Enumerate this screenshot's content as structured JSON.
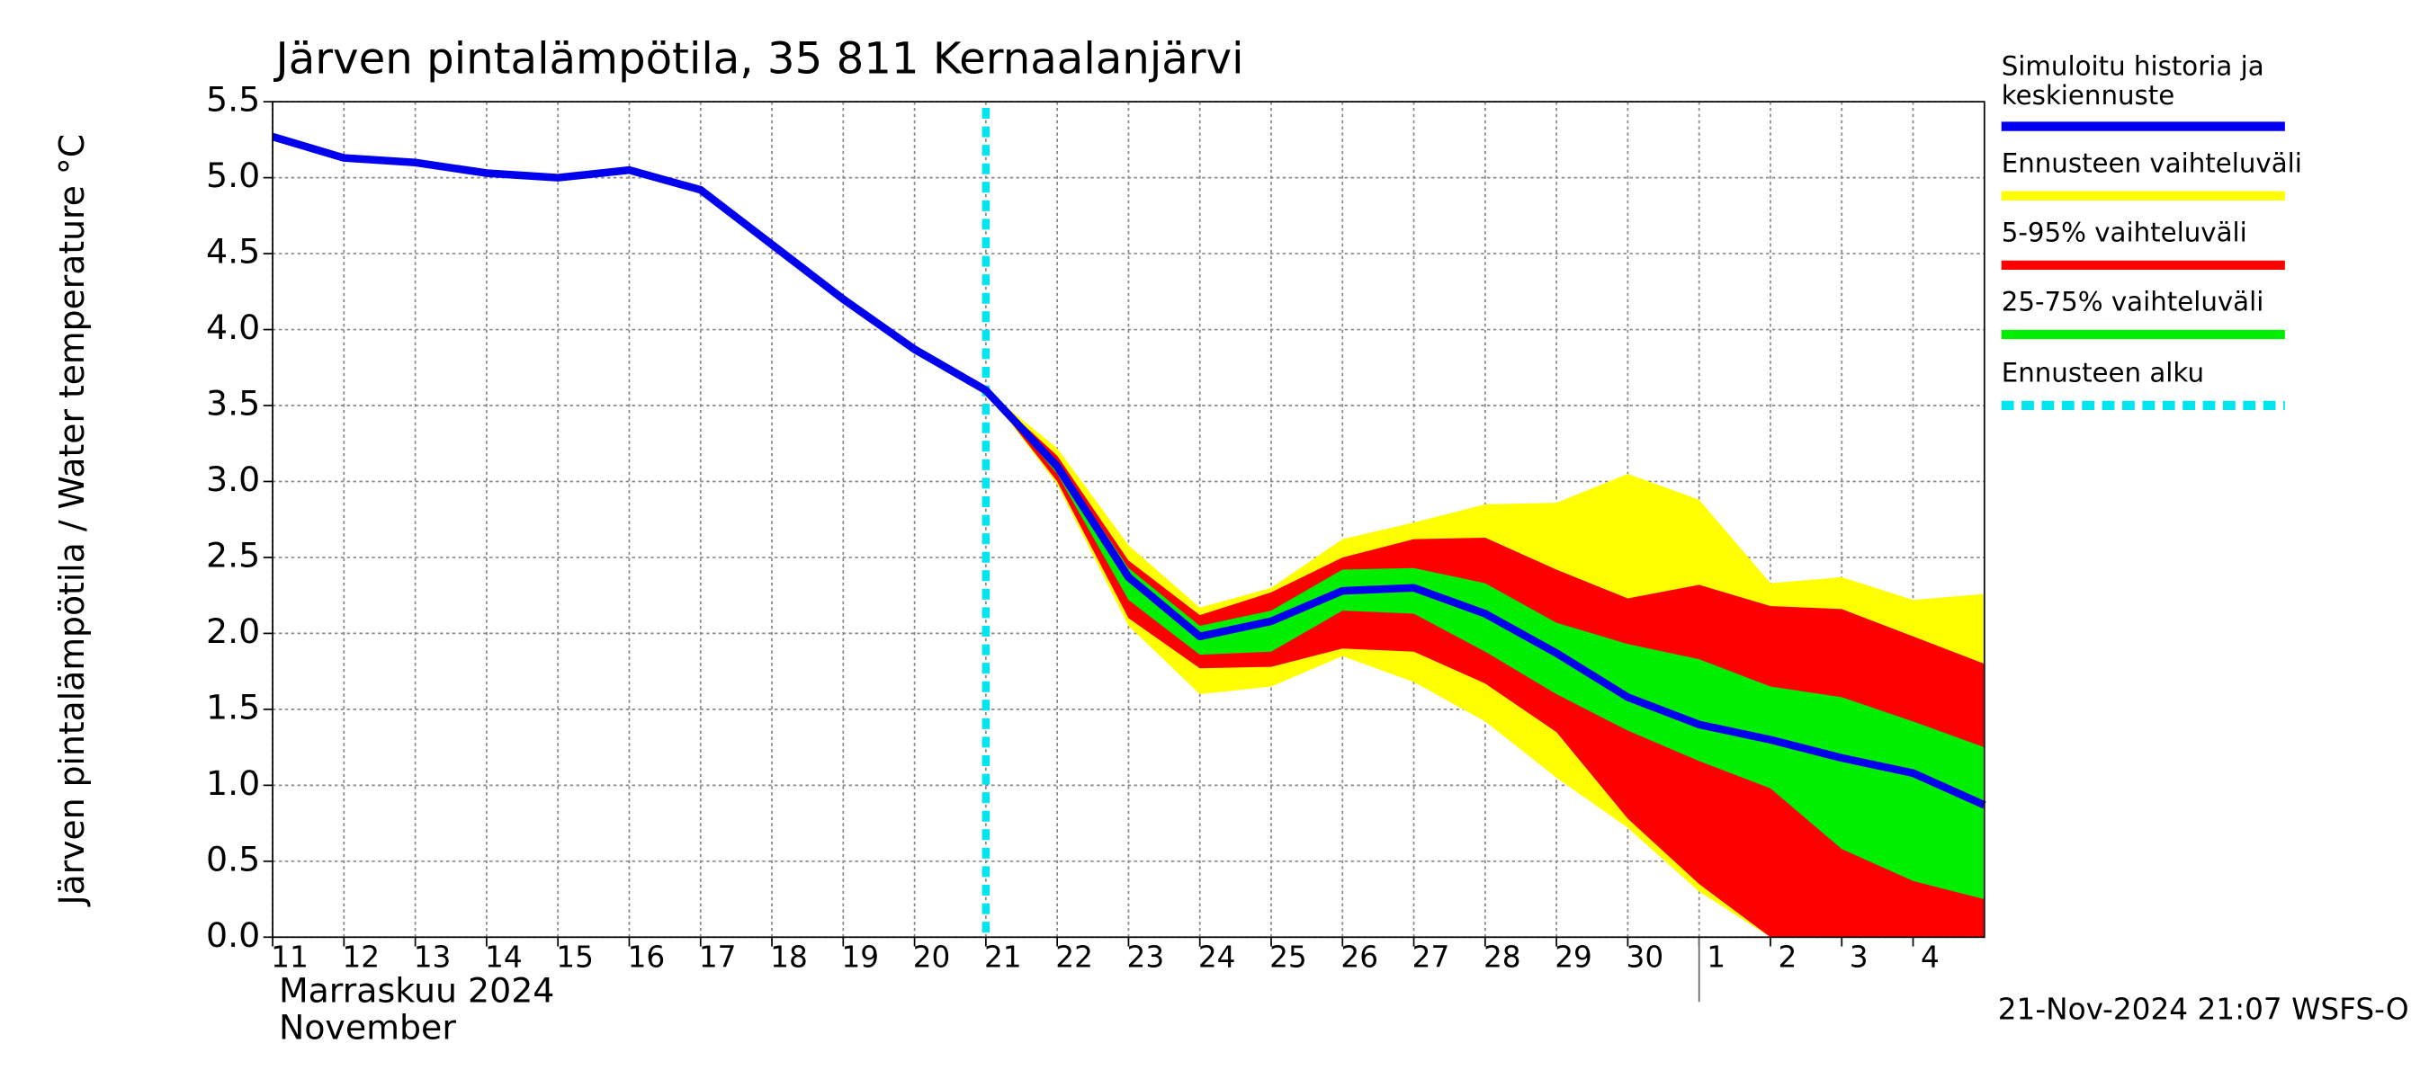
{
  "chart_data": {
    "type": "line",
    "title": "Järven pintalämpötila, 35 811 Kernaalanjärvi",
    "y_label": "Järven pintalämpötila / Water temperature °C",
    "month_label": "Marraskuu 2024",
    "month_label_en": "November",
    "footer": "21-Nov-2024 21:07 WSFS-O",
    "x": [
      "2024-11-11",
      "2024-11-12",
      "2024-11-13",
      "2024-11-14",
      "2024-11-15",
      "2024-11-16",
      "2024-11-17",
      "2024-11-18",
      "2024-11-19",
      "2024-11-20",
      "2024-11-21",
      "2024-11-22",
      "2024-11-23",
      "2024-11-24",
      "2024-11-25",
      "2024-11-26",
      "2024-11-27",
      "2024-11-28",
      "2024-11-29",
      "2024-11-30",
      "2024-12-01",
      "2024-12-02",
      "2024-12-03",
      "2024-12-04",
      "2024-12-05"
    ],
    "xlim": [
      "2024-11-11",
      "2024-12-05"
    ],
    "xticks": [
      {
        "value": "2024-11-11",
        "label": "11"
      },
      {
        "value": "2024-11-12",
        "label": "12"
      },
      {
        "value": "2024-11-13",
        "label": "13"
      },
      {
        "value": "2024-11-14",
        "label": "14"
      },
      {
        "value": "2024-11-15",
        "label": "15"
      },
      {
        "value": "2024-11-16",
        "label": "16"
      },
      {
        "value": "2024-11-17",
        "label": "17"
      },
      {
        "value": "2024-11-18",
        "label": "18"
      },
      {
        "value": "2024-11-19",
        "label": "19"
      },
      {
        "value": "2024-11-20",
        "label": "20"
      },
      {
        "value": "2024-11-21",
        "label": "21"
      },
      {
        "value": "2024-11-22",
        "label": "22"
      },
      {
        "value": "2024-11-23",
        "label": "23"
      },
      {
        "value": "2024-11-24",
        "label": "24"
      },
      {
        "value": "2024-11-25",
        "label": "25"
      },
      {
        "value": "2024-11-26",
        "label": "26"
      },
      {
        "value": "2024-11-27",
        "label": "27"
      },
      {
        "value": "2024-11-28",
        "label": "28"
      },
      {
        "value": "2024-11-29",
        "label": "29"
      },
      {
        "value": "2024-11-30",
        "label": "30"
      },
      {
        "value": "2024-12-01",
        "label": "1"
      },
      {
        "value": "2024-12-02",
        "label": "2"
      },
      {
        "value": "2024-12-03",
        "label": "3"
      },
      {
        "value": "2024-12-04",
        "label": "4"
      }
    ],
    "month_tick": "2024-12-01",
    "ylim": [
      0,
      5.5
    ],
    "yticks": [
      {
        "value": 0,
        "label": "0.0"
      },
      0.5,
      {
        "value": 1,
        "label": "1.0"
      },
      1.5,
      {
        "value": 2,
        "label": "2.0"
      },
      2.5,
      {
        "value": 3,
        "label": "3.0"
      },
      3.5,
      {
        "value": 4,
        "label": "4.0"
      },
      4.5,
      {
        "value": 5,
        "label": "5.0"
      },
      5.5
    ],
    "grid": true,
    "forecast_start": {
      "name": "Ennusteen alku",
      "x": "2024-11-21",
      "color": "#00e5ee"
    },
    "bands": [
      {
        "name": "Ennusteen vaihteluväli",
        "color": "#ffff00",
        "upper": [
          null,
          null,
          null,
          null,
          null,
          null,
          null,
          null,
          null,
          null,
          3.6,
          3.22,
          2.58,
          2.17,
          2.3,
          2.62,
          2.73,
          2.85,
          2.86,
          3.05,
          2.88,
          2.33,
          2.37,
          2.22,
          2.26
        ],
        "lower": [
          null,
          null,
          null,
          null,
          null,
          null,
          null,
          null,
          null,
          null,
          3.6,
          2.98,
          2.05,
          1.6,
          1.65,
          1.85,
          1.68,
          1.42,
          1.05,
          0.72,
          0.3,
          0,
          0,
          0,
          0
        ]
      },
      {
        "name": "5-95% vaihteluväli",
        "color": "#ff0000",
        "upper": [
          null,
          null,
          null,
          null,
          null,
          null,
          null,
          null,
          null,
          null,
          3.6,
          3.17,
          2.48,
          2.12,
          2.27,
          2.5,
          2.62,
          2.63,
          2.42,
          2.23,
          2.32,
          2.18,
          2.16,
          1.98,
          1.8
        ],
        "lower": [
          null,
          null,
          null,
          null,
          null,
          null,
          null,
          null,
          null,
          null,
          3.6,
          3.0,
          2.1,
          1.77,
          1.78,
          1.9,
          1.88,
          1.67,
          1.35,
          0.78,
          0.35,
          0,
          0,
          0,
          0
        ]
      },
      {
        "name": "25-75% vaihteluväli",
        "color": "#00ee00",
        "upper": [
          null,
          null,
          null,
          null,
          null,
          null,
          null,
          null,
          null,
          null,
          3.6,
          3.13,
          2.43,
          2.05,
          2.15,
          2.42,
          2.43,
          2.33,
          2.07,
          1.93,
          1.83,
          1.65,
          1.58,
          1.42,
          1.25
        ],
        "lower": [
          null,
          null,
          null,
          null,
          null,
          null,
          null,
          null,
          null,
          null,
          3.6,
          3.05,
          2.22,
          1.86,
          1.88,
          2.15,
          2.13,
          1.88,
          1.6,
          1.36,
          1.16,
          0.98,
          0.58,
          0.37,
          0.25
        ]
      }
    ],
    "series": [
      {
        "name": "Simuloitu historia ja keskiennuste",
        "color": "#0000ee",
        "values": [
          5.27,
          5.13,
          5.1,
          5.03,
          5.0,
          5.05,
          4.92,
          4.56,
          4.2,
          3.87,
          3.6,
          3.1,
          2.37,
          1.98,
          2.08,
          2.28,
          2.3,
          2.13,
          1.87,
          1.58,
          1.4,
          1.3,
          1.18,
          1.08,
          0.87
        ]
      }
    ]
  }
}
